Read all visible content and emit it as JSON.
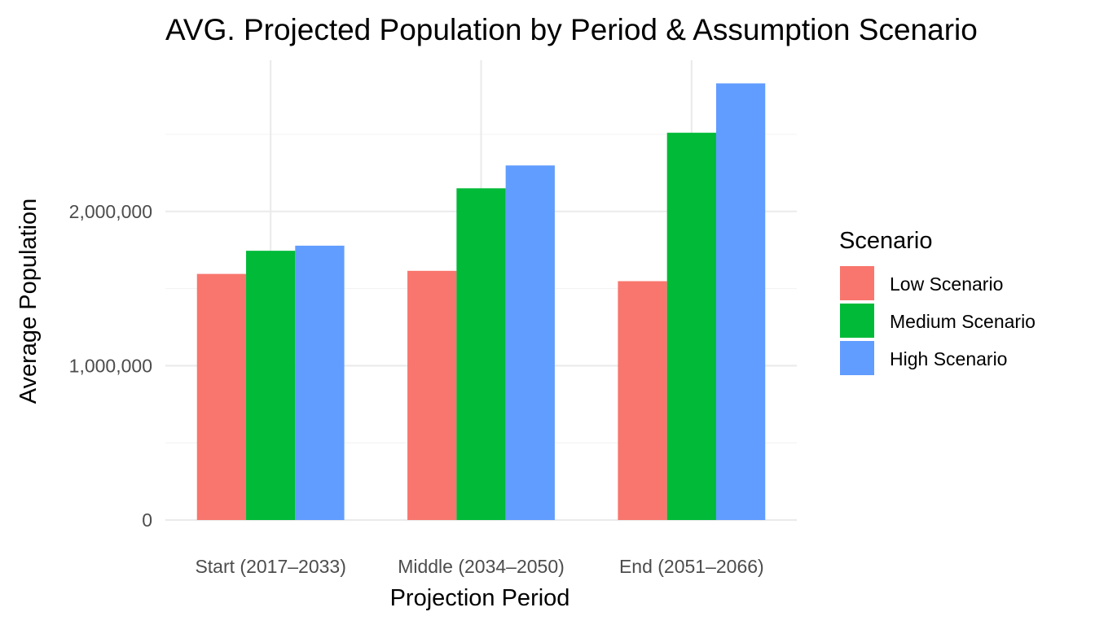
{
  "chart_data": {
    "type": "bar",
    "title": "AVG. Projected Population by Period & Assumption Scenario",
    "xlabel": "Projection Period",
    "ylabel": "Average Population",
    "categories": [
      "Start (2017–2033)",
      "Middle (2034–2050)",
      "End (2051–2066)"
    ],
    "series": [
      {
        "name": "Low Scenario",
        "color": "#F8766D",
        "values": [
          1595000,
          1615000,
          1548000
        ]
      },
      {
        "name": "Medium Scenario",
        "color": "#00BA38",
        "values": [
          1745000,
          2150000,
          2510000
        ]
      },
      {
        "name": "High Scenario",
        "color": "#619CFF",
        "values": [
          1778000,
          2298000,
          2830000
        ]
      }
    ],
    "ylim": [
      0,
      2980000
    ],
    "y_ticks": [
      0,
      1000000,
      2000000
    ],
    "y_tick_labels": [
      "0",
      "1,000,000",
      "2,000,000"
    ],
    "grid": true,
    "legend": {
      "title": "Scenario",
      "position": "right"
    }
  }
}
